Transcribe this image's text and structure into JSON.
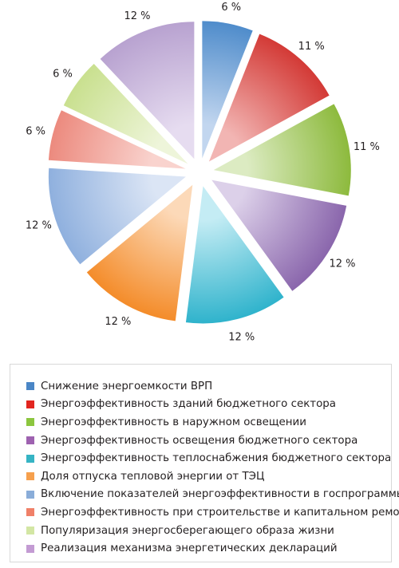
{
  "chart_data": {
    "type": "pie",
    "exploded": true,
    "categories": [
      "Снижение энергоемкости ВРП",
      "Энергоэффективность зданий бюджетного сектора",
      "Энергоэффективность в наружном освещении",
      "Энергоэффективность освещения бюджетного сектора",
      "Энергоэффективность теплоснабжения бюджетного сектора",
      "Доля отпуска тепловой энергии от ТЭЦ",
      "Включение показателей энергоэффективности в госпрограммы",
      "Энергоэффективность при строительстве и капитальном ремонте",
      "Популяризация энергосберегающего образа жизни",
      "Реализация механизма энергетических деклараций"
    ],
    "values": [
      6,
      11,
      11,
      12,
      12,
      12,
      12,
      6,
      6,
      12
    ],
    "value_labels": [
      "6 %",
      "11 %",
      "11 %",
      "12 %",
      "12 %",
      "12 %",
      "12 %",
      "6 %",
      "6 %",
      "12 %"
    ],
    "colors": [
      "#4f8ccb",
      "#d33a36",
      "#8dba3d",
      "#8a66ac",
      "#2fb3cc",
      "#f48c2a",
      "#8fb0de",
      "#ec8a7e",
      "#c9e08f",
      "#b8a2d0"
    ],
    "light_colors": [
      "#c2d6ef",
      "#f2b5b3",
      "#dcebc2",
      "#dcd0e9",
      "#c4ecf4",
      "#fcd9b8",
      "#dbe5f5",
      "#f9d3ce",
      "#eef5da",
      "#e6dcf0"
    ],
    "legend_position": "bottom",
    "grid": false
  },
  "legend": {
    "items": [
      {
        "label": "Снижение энергоемкости ВРП",
        "color": "#4a86c6"
      },
      {
        "label": "Энергоэффективность зданий бюджетного сектора",
        "color": "#e2251f"
      },
      {
        "label": "Энергоэффективность в наружном освещении",
        "color": "#8cc63f"
      },
      {
        "label": "Энергоэффективность освещения бюджетного сектора",
        "color": "#9e62b0"
      },
      {
        "label": "Энергоэффективность теплоснабжения бюджетного сектора",
        "color": "#36b4c4"
      },
      {
        "label": "Доля отпуска тепловой энергии от ТЭЦ",
        "color": "#f6a04d"
      },
      {
        "label": "Включение показателей энергоэффективности в госпрограммы",
        "color": "#8aadd9"
      },
      {
        "label": "Энергоэффективность при строительстве и капитальном ремонте",
        "color": "#f08068"
      },
      {
        "label": "Популяризация энергосберегающего образа жизни",
        "color": "#d3e6a4"
      },
      {
        "label": "Реализация механизма энергетических деклараций",
        "color": "#c39bd3"
      }
    ]
  }
}
